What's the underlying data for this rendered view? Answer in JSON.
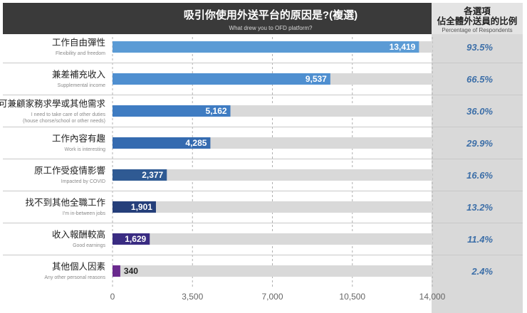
{
  "chart_data": {
    "type": "bar",
    "orientation": "horizontal",
    "title": "吸引你使用外送平台的原因是?(複選)",
    "subtitle": "What drew you to OFD platform?",
    "side_header": [
      "各選項",
      "佔全體外送員的比例"
    ],
    "side_header_sub": "Percentage of Respondents",
    "xlim": [
      0,
      14000
    ],
    "xticks": [
      0,
      3500,
      7000,
      10500,
      14000
    ],
    "xtick_labels": [
      "0",
      "3,500",
      "7,000",
      "10,500",
      "14,000"
    ],
    "categories": [
      {
        "label": "工作自由彈性",
        "sub": [
          "Flexibility and freedom"
        ],
        "value": 13419,
        "value_label": "13,419",
        "pct": "93.5%",
        "color": "#5b9bd5"
      },
      {
        "label": "兼差補充收入",
        "sub": [
          "Supplemental income"
        ],
        "value": 9537,
        "value_label": "9,537",
        "pct": "66.5%",
        "color": "#4f8fd0"
      },
      {
        "label": "可兼顧家務求學或其他需求",
        "sub": [
          "I need to take care of other duties",
          "(house chorse/school or other needs)"
        ],
        "value": 5162,
        "value_label": "5,162",
        "pct": "36.0%",
        "color": "#3f7cc2"
      },
      {
        "label": "工作內容有趣",
        "sub": [
          "Work is interesting"
        ],
        "value": 4285,
        "value_label": "4,285",
        "pct": "29.9%",
        "color": "#356bb0"
      },
      {
        "label": "原工作受疫情影響",
        "sub": [
          "Impacted by COVID"
        ],
        "value": 2377,
        "value_label": "2,377",
        "pct": "16.6%",
        "color": "#2f5a93"
      },
      {
        "label": "找不到其他全職工作",
        "sub": [
          "I'm in-between jobs"
        ],
        "value": 1901,
        "value_label": "1,901",
        "pct": "13.2%",
        "color": "#253f7a"
      },
      {
        "label": "收入報酬較高",
        "sub": [
          "Good earnings"
        ],
        "value": 1629,
        "value_label": "1,629",
        "pct": "11.4%",
        "color": "#3a2c82"
      },
      {
        "label": "其他個人因素",
        "sub": [
          "Any other personal reasons"
        ],
        "value": 340,
        "value_label": "340",
        "pct": "2.4%",
        "color": "#6a2a8e"
      }
    ],
    "colors": {
      "header_bg": "#3a3a3a",
      "side_bg": "#d9d9d9",
      "track": "#d9d9d9",
      "row_sep": "#c8c8c8",
      "grid": "#b0b0b0",
      "pct_text": "#3d6fa8"
    }
  }
}
